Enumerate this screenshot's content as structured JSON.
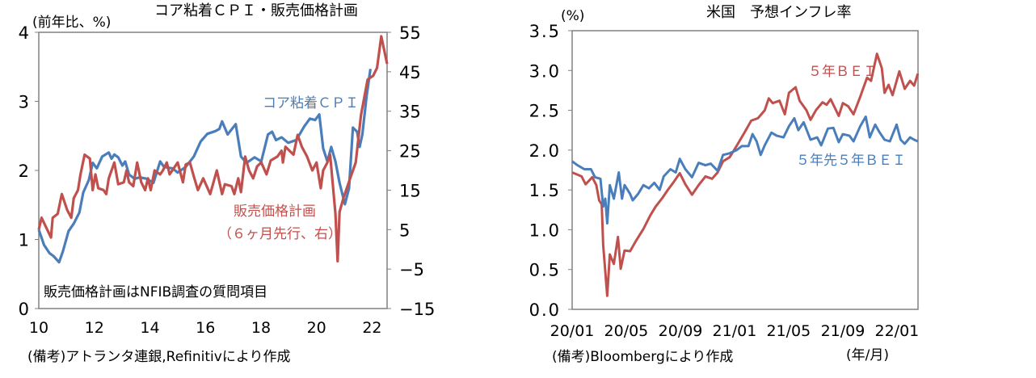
{
  "colors": {
    "blue": "#4a7ebb",
    "red": "#c0504d",
    "axis": "#808080"
  },
  "chart_data": [
    {
      "type": "line",
      "title": "コア粘着ＣＰＩ・販売価格計画",
      "ylabel": "(前年比、%)",
      "note": "販売価格計画はNFIB調査の質問項目",
      "source": "(備考)アトランタ連銀,Refinitivにより作成",
      "xlim": [
        2010,
        2022.54
      ],
      "ylim_left": [
        0,
        4
      ],
      "ylim_right": [
        -15,
        55
      ],
      "x_ticks": [
        {
          "value": 2010,
          "label": "10"
        },
        {
          "value": 2012,
          "label": "12"
        },
        {
          "value": 2014,
          "label": "14"
        },
        {
          "value": 2016,
          "label": "16"
        },
        {
          "value": 2018,
          "label": "18"
        },
        {
          "value": 2020,
          "label": "20"
        },
        {
          "value": 2022,
          "label": "22"
        }
      ],
      "y_ticks_left": [
        {
          "value": 0,
          "label": "0"
        },
        {
          "value": 1,
          "label": "1"
        },
        {
          "value": 2,
          "label": "2"
        },
        {
          "value": 3,
          "label": "3"
        },
        {
          "value": 4,
          "label": "4"
        }
      ],
      "y_ticks_right": [
        {
          "value": -15,
          "label": "−15"
        },
        {
          "value": -5,
          "label": "−5"
        },
        {
          "value": 5,
          "label": "5"
        },
        {
          "value": 15,
          "label": "15"
        },
        {
          "value": 25,
          "label": "25"
        },
        {
          "value": 35,
          "label": "35"
        },
        {
          "value": 45,
          "label": "45"
        },
        {
          "value": 55,
          "label": "55"
        }
      ],
      "grid": false,
      "series": [
        {
          "name": "コア粘着ＣＰＩ",
          "axis": "left",
          "color": "#4a7ebb",
          "x": [
            2010.0,
            2010.19,
            2010.39,
            2010.53,
            2010.73,
            2010.87,
            2011.07,
            2011.26,
            2011.46,
            2011.6,
            2011.8,
            2011.94,
            2012.09,
            2012.28,
            2012.52,
            2012.62,
            2012.72,
            2012.86,
            2013.01,
            2013.11,
            2013.25,
            2013.45,
            2013.64,
            2013.88,
            2014.13,
            2014.37,
            2014.51,
            2014.81,
            2015.0,
            2015.29,
            2015.58,
            2015.83,
            2016.07,
            2016.36,
            2016.5,
            2016.6,
            2016.8,
            2017.09,
            2017.28,
            2017.48,
            2017.77,
            2018.01,
            2018.25,
            2018.4,
            2018.54,
            2018.74,
            2018.98,
            2019.27,
            2019.56,
            2019.76,
            2019.95,
            2020.1,
            2020.24,
            2020.39,
            2020.53,
            2020.68,
            2020.83,
            2021.02,
            2021.17,
            2021.31,
            2021.46,
            2021.55,
            2021.65,
            2021.8,
            2021.94
          ],
          "y": [
            1.14,
            0.92,
            0.8,
            0.76,
            0.67,
            0.83,
            1.12,
            1.23,
            1.39,
            1.68,
            1.86,
            2.11,
            2.03,
            2.2,
            2.26,
            2.17,
            2.23,
            2.19,
            2.07,
            2.13,
            1.94,
            1.88,
            1.9,
            1.88,
            1.82,
            2.13,
            2.05,
            2.03,
            1.97,
            2.05,
            2.2,
            2.42,
            2.53,
            2.57,
            2.6,
            2.71,
            2.52,
            2.67,
            2.2,
            2.11,
            2.19,
            2.13,
            2.52,
            2.56,
            2.44,
            2.48,
            2.4,
            2.44,
            2.64,
            2.75,
            2.73,
            2.81,
            2.32,
            2.13,
            2.34,
            2.13,
            1.82,
            1.51,
            1.74,
            2.62,
            2.56,
            2.34,
            2.52,
            3.07,
            3.47
          ]
        },
        {
          "name": "販売価格計画",
          "sublabel": "（６ヶ月先行、右）",
          "axis": "right",
          "color": "#c0504d",
          "x": [
            2010.0,
            2010.1,
            2010.44,
            2010.5,
            2010.68,
            2010.83,
            2011.02,
            2011.17,
            2011.26,
            2011.41,
            2011.5,
            2011.65,
            2011.84,
            2011.94,
            2012.04,
            2012.14,
            2012.33,
            2012.43,
            2012.52,
            2012.72,
            2012.86,
            2013.06,
            2013.16,
            2013.25,
            2013.4,
            2013.54,
            2013.69,
            2013.83,
            2013.93,
            2014.03,
            2014.17,
            2014.37,
            2014.47,
            2014.61,
            2014.71,
            2015.0,
            2015.19,
            2015.29,
            2015.44,
            2015.58,
            2015.73,
            2015.92,
            2016.17,
            2016.41,
            2016.6,
            2016.7,
            2016.94,
            2017.04,
            2017.18,
            2017.28,
            2017.43,
            2017.57,
            2017.72,
            2017.86,
            2018.01,
            2018.2,
            2018.35,
            2018.59,
            2018.74,
            2018.79,
            2018.88,
            2019.17,
            2019.32,
            2019.47,
            2019.66,
            2019.85,
            2020.0,
            2020.15,
            2020.24,
            2020.39,
            2020.49,
            2020.68,
            2020.76,
            2020.83,
            2020.97,
            2021.21,
            2021.41,
            2021.6,
            2021.84,
            2022.04,
            2022.18,
            2022.33,
            2022.54
          ],
          "y": [
            5,
            8,
            3,
            8,
            9,
            14,
            10,
            8,
            13,
            15,
            19,
            24,
            23,
            15,
            19,
            15.5,
            15,
            14,
            18,
            22,
            16.5,
            17,
            20,
            17,
            16,
            22,
            17,
            15,
            18,
            15,
            20,
            19,
            20,
            22,
            19,
            22,
            17,
            21.5,
            22,
            18.5,
            15,
            18,
            14,
            20,
            14,
            16.5,
            16,
            14,
            18,
            14.5,
            23.5,
            20,
            18,
            21,
            22,
            19,
            22.5,
            23.5,
            25,
            22,
            26,
            24,
            29,
            26,
            23.5,
            20,
            22,
            15.5,
            20,
            22,
            24,
            9,
            -3,
            9.5,
            13,
            18,
            22,
            34,
            43,
            44,
            46,
            54,
            47
          ]
        }
      ]
    },
    {
      "type": "line",
      "title": "米国　予想インフレ率",
      "ylabel": "(%)",
      "xlabel": "(年/月)",
      "source": "(備考)Bloombergにより作成",
      "xlim": [
        2020.0,
        2022.13
      ],
      "ylim": [
        0,
        3.5
      ],
      "x_ticks": [
        {
          "value": 2020.0,
          "label": "20/01"
        },
        {
          "value": 2020.333,
          "label": "20/05"
        },
        {
          "value": 2020.667,
          "label": "20/09"
        },
        {
          "value": 2021.0,
          "label": "21/01"
        },
        {
          "value": 2021.333,
          "label": "21/05"
        },
        {
          "value": 2021.667,
          "label": "21/09"
        },
        {
          "value": 2022.0,
          "label": "22/01"
        }
      ],
      "y_ticks": [
        {
          "value": 0,
          "label": "0.0"
        },
        {
          "value": 0.5,
          "label": "0.5"
        },
        {
          "value": 1.0,
          "label": "1.0"
        },
        {
          "value": 1.5,
          "label": "1.5"
        },
        {
          "value": 2.0,
          "label": "2.0"
        },
        {
          "value": 2.5,
          "label": "2.5"
        },
        {
          "value": 3.0,
          "label": "3.0"
        },
        {
          "value": 3.5,
          "label": "3.5"
        }
      ],
      "grid": false,
      "series": [
        {
          "name": "５年ＢＥＩ",
          "color": "#c0504d",
          "x": [
            2020.0,
            2020.058,
            2020.083,
            2020.124,
            2020.149,
            2020.166,
            2020.182,
            2020.191,
            2020.216,
            2020.232,
            2020.257,
            2020.282,
            2020.299,
            2020.323,
            2020.357,
            2020.39,
            2020.439,
            2020.481,
            2020.514,
            2020.556,
            2020.589,
            2020.622,
            2020.663,
            2020.697,
            2020.738,
            2020.779,
            2020.821,
            2020.862,
            2020.896,
            2020.929,
            2020.97,
            2021.012,
            2021.061,
            2021.103,
            2021.144,
            2021.186,
            2021.211,
            2021.235,
            2021.277,
            2021.31,
            2021.335,
            2021.376,
            2021.401,
            2021.443,
            2021.468,
            2021.501,
            2021.542,
            2021.567,
            2021.592,
            2021.642,
            2021.667,
            2021.7,
            2021.733,
            2021.774,
            2021.816,
            2021.841,
            2021.877,
            2021.907,
            2021.924,
            2021.949,
            2021.973,
            2022.015,
            2022.048,
            2022.081,
            2022.106,
            2022.129
          ],
          "y": [
            1.72,
            1.67,
            1.57,
            1.66,
            1.56,
            1.37,
            1.32,
            0.81,
            0.17,
            0.69,
            0.57,
            0.91,
            0.51,
            0.74,
            0.73,
            0.85,
            1.01,
            1.18,
            1.29,
            1.4,
            1.5,
            1.59,
            1.71,
            1.57,
            1.44,
            1.56,
            1.67,
            1.64,
            1.72,
            1.86,
            1.91,
            2.05,
            2.22,
            2.37,
            2.4,
            2.5,
            2.65,
            2.59,
            2.62,
            2.45,
            2.72,
            2.79,
            2.62,
            2.5,
            2.38,
            2.5,
            2.6,
            2.57,
            2.64,
            2.43,
            2.59,
            2.55,
            2.45,
            2.67,
            2.91,
            2.87,
            3.21,
            3.03,
            2.72,
            2.82,
            2.69,
            2.99,
            2.77,
            2.87,
            2.81,
            2.96
          ]
        },
        {
          "name": "５年先５年ＢＥＩ",
          "color": "#4a7ebb",
          "x": [
            2020.0,
            2020.033,
            2020.075,
            2020.116,
            2020.141,
            2020.174,
            2020.191,
            2020.204,
            2020.216,
            2020.232,
            2020.257,
            2020.287,
            2020.307,
            2020.323,
            2020.357,
            2020.373,
            2020.406,
            2020.439,
            2020.473,
            2020.506,
            2020.539,
            2020.564,
            2020.605,
            2020.638,
            2020.663,
            2020.697,
            2020.738,
            2020.779,
            2020.821,
            2020.854,
            2020.896,
            2020.929,
            2020.97,
            2021.012,
            2021.045,
            2021.086,
            2021.111,
            2021.136,
            2021.161,
            2021.186,
            2021.227,
            2021.26,
            2021.302,
            2021.335,
            2021.368,
            2021.393,
            2021.426,
            2021.468,
            2021.509,
            2021.534,
            2021.575,
            2021.609,
            2021.642,
            2021.667,
            2021.708,
            2021.733,
            2021.774,
            2021.808,
            2021.833,
            2021.866,
            2021.891,
            2021.924,
            2021.957,
            2021.998,
            2022.023,
            2022.048,
            2022.081,
            2022.106,
            2022.129
          ],
          "y": [
            1.86,
            1.81,
            1.76,
            1.76,
            1.66,
            1.64,
            1.29,
            1.39,
            1.08,
            1.56,
            1.39,
            1.72,
            1.39,
            1.56,
            1.45,
            1.37,
            1.45,
            1.56,
            1.52,
            1.59,
            1.5,
            1.67,
            1.76,
            1.72,
            1.89,
            1.76,
            1.66,
            1.84,
            1.81,
            1.83,
            1.74,
            1.94,
            1.96,
            2.0,
            2.05,
            2.05,
            2.2,
            2.11,
            1.94,
            2.06,
            2.22,
            2.18,
            2.16,
            2.3,
            2.4,
            2.25,
            2.35,
            2.13,
            2.16,
            2.06,
            2.27,
            2.28,
            2.1,
            2.2,
            2.18,
            2.11,
            2.3,
            2.42,
            2.16,
            2.32,
            2.23,
            2.13,
            2.11,
            2.32,
            2.13,
            2.08,
            2.16,
            2.13,
            2.11
          ]
        }
      ]
    }
  ]
}
